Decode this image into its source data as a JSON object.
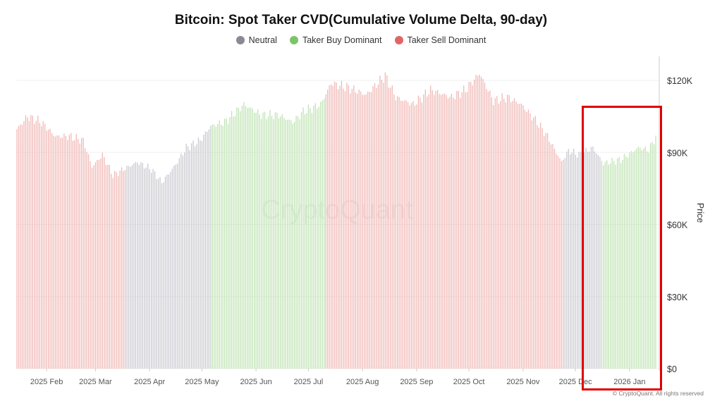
{
  "chart_data": {
    "type": "bar",
    "title": "Bitcoin: Spot Taker CVD(Cumulative Volume Delta, 90-day)",
    "ylabel": "Price",
    "ylim": [
      0,
      130000
    ],
    "y_ticks": [
      0,
      30000,
      60000,
      90000,
      120000
    ],
    "y_tick_labels": [
      "$0",
      "$30K",
      "$60K",
      "$90K",
      "$120K"
    ],
    "x_range": [
      "2025-01-15",
      "2026-01-16"
    ],
    "x_ticks": [
      {
        "date": "2025-02-01",
        "label": "2025 Feb"
      },
      {
        "date": "2025-03-01",
        "label": "2025 Mar"
      },
      {
        "date": "2025-04-01",
        "label": "2025 Apr"
      },
      {
        "date": "2025-05-01",
        "label": "2025 May"
      },
      {
        "date": "2025-06-01",
        "label": "2025 Jun"
      },
      {
        "date": "2025-07-01",
        "label": "2025 Jul"
      },
      {
        "date": "2025-08-01",
        "label": "2025 Aug"
      },
      {
        "date": "2025-09-01",
        "label": "2025 Sep"
      },
      {
        "date": "2025-10-01",
        "label": "2025 Oct"
      },
      {
        "date": "2025-11-01",
        "label": "2025 Nov"
      },
      {
        "date": "2025-12-01",
        "label": "2025 Dec"
      },
      {
        "date": "2026-01-01",
        "label": "2026 Jan"
      }
    ],
    "grid": true,
    "legend_position": "top",
    "legend": [
      {
        "name": "Neutral",
        "color": "#8a8a94"
      },
      {
        "name": "Taker Buy Dominant",
        "color": "#7cc46a"
      },
      {
        "name": "Taker Sell Dominant",
        "color": "#e06666"
      }
    ],
    "bar_colors": {
      "Neutral": "#c9c9d0",
      "Taker Buy Dominant": "#bfe3b2",
      "Taker Sell Dominant": "#f0b8b5"
    },
    "price_points": [
      [
        "2025-01-15",
        99700
      ],
      [
        "2025-01-21",
        105000
      ],
      [
        "2025-01-29",
        102600
      ],
      [
        "2025-02-06",
        96700
      ],
      [
        "2025-02-14",
        96700
      ],
      [
        "2025-02-22",
        95000
      ],
      [
        "2025-02-27",
        84000
      ],
      [
        "2025-03-05",
        89000
      ],
      [
        "2025-03-11",
        80500
      ],
      [
        "2025-03-17",
        83000
      ],
      [
        "2025-03-25",
        86000
      ],
      [
        "2025-04-02",
        83000
      ],
      [
        "2025-04-08",
        77500
      ],
      [
        "2025-04-16",
        85000
      ],
      [
        "2025-04-22",
        92000
      ],
      [
        "2025-04-30",
        95000
      ],
      [
        "2025-05-06",
        101000
      ],
      [
        "2025-05-14",
        102600
      ],
      [
        "2025-05-25",
        110000
      ],
      [
        "2025-06-04",
        105600
      ],
      [
        "2025-06-14",
        105600
      ],
      [
        "2025-06-22",
        102600
      ],
      [
        "2025-06-28",
        107000
      ],
      [
        "2025-07-08",
        110000
      ],
      [
        "2025-07-14",
        118800
      ],
      [
        "2025-07-24",
        117000
      ],
      [
        "2025-08-03",
        114000
      ],
      [
        "2025-08-14",
        122000
      ],
      [
        "2025-08-20",
        113000
      ],
      [
        "2025-08-30",
        110000
      ],
      [
        "2025-09-09",
        116000
      ],
      [
        "2025-09-21",
        113000
      ],
      [
        "2025-09-29",
        116000
      ],
      [
        "2025-10-07",
        123000
      ],
      [
        "2025-10-15",
        111500
      ],
      [
        "2025-10-23",
        113000
      ],
      [
        "2025-10-31",
        110000
      ],
      [
        "2025-11-09",
        102600
      ],
      [
        "2025-11-15",
        96700
      ],
      [
        "2025-11-23",
        86000
      ],
      [
        "2025-11-27",
        90800
      ],
      [
        "2025-12-03",
        89000
      ],
      [
        "2025-12-11",
        92000
      ],
      [
        "2025-12-17",
        85500
      ],
      [
        "2025-12-27",
        87000
      ],
      [
        "2026-01-06",
        92000
      ],
      [
        "2026-01-12",
        91000
      ],
      [
        "2026-01-16",
        96700
      ]
    ],
    "regimes": [
      {
        "start": "2025-01-15",
        "end": "2025-03-18",
        "type": "Taker Sell Dominant"
      },
      {
        "start": "2025-03-19",
        "end": "2025-05-06",
        "type": "Neutral"
      },
      {
        "start": "2025-05-07",
        "end": "2025-07-10",
        "type": "Taker Buy Dominant"
      },
      {
        "start": "2025-07-11",
        "end": "2025-11-24",
        "type": "Taker Sell Dominant"
      },
      {
        "start": "2025-11-25",
        "end": "2025-12-15",
        "type": "Neutral"
      },
      {
        "start": "2025-12-16",
        "end": "2026-01-16",
        "type": "Taker Buy Dominant"
      }
    ],
    "annotation": {
      "type": "highlight-box",
      "start": "2025-12-03",
      "end": "2026-01-16",
      "color": "#e00000"
    }
  },
  "watermark": "CryptoQuant",
  "copyright": "© CryptoQuant. All rights reserved"
}
